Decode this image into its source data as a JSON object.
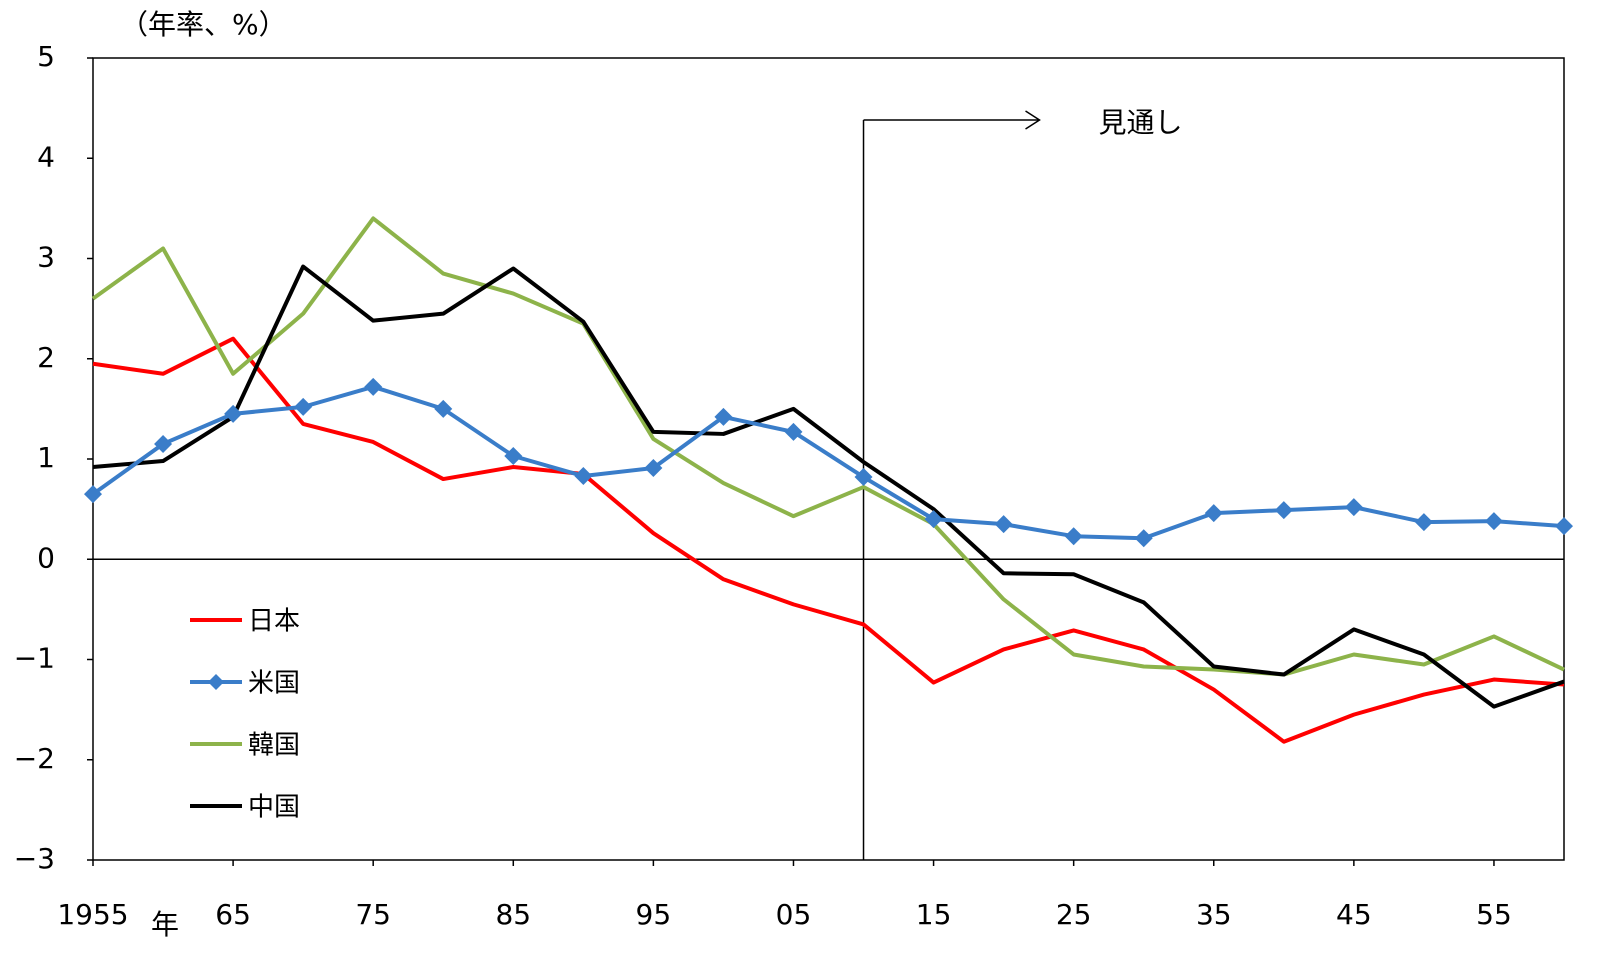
{
  "chart_data": {
    "type": "line",
    "y_label": "（年率、%）",
    "x_label": "年",
    "x": [
      1955,
      1960,
      1965,
      1970,
      1975,
      1980,
      1985,
      1990,
      1995,
      2000,
      2005,
      2010,
      2015,
      2020,
      2025,
      2030,
      2035,
      2040,
      2045,
      2050,
      2055,
      2060
    ],
    "xlim": [
      1955,
      2060
    ],
    "xticks": [
      {
        "value": 1955,
        "label": "1955"
      },
      {
        "value": 1965,
        "label": "65"
      },
      {
        "value": 1975,
        "label": "75"
      },
      {
        "value": 1985,
        "label": "85"
      },
      {
        "value": 1995,
        "label": "95"
      },
      {
        "value": 2005,
        "label": "05"
      },
      {
        "value": 2015,
        "label": "15"
      },
      {
        "value": 2025,
        "label": "25"
      },
      {
        "value": 2035,
        "label": "35"
      },
      {
        "value": 2045,
        "label": "45"
      },
      {
        "value": 2055,
        "label": "55"
      }
    ],
    "ylim": [
      -3,
      5
    ],
    "yticks": [
      {
        "value": -3,
        "label": "−3"
      },
      {
        "value": -2,
        "label": "−2"
      },
      {
        "value": -1,
        "label": "−1"
      },
      0,
      1,
      2,
      3,
      4,
      5
    ],
    "legend": "lower left",
    "annotation": {
      "text": "見通し",
      "x": 2010
    },
    "series": [
      {
        "name": "日本",
        "color": "#ff0000",
        "values": [
          1.95,
          1.85,
          2.2,
          1.35,
          1.17,
          0.8,
          0.92,
          0.85,
          0.26,
          -0.2,
          -0.45,
          -0.65,
          -1.23,
          -0.9,
          -0.71,
          -0.9,
          -1.3,
          -1.82,
          -1.55,
          -1.35,
          -1.2,
          -1.25
        ]
      },
      {
        "name": "米国",
        "color": "#3a7dc9",
        "marker": "diamond",
        "values": [
          0.65,
          1.15,
          1.45,
          1.52,
          1.72,
          1.5,
          1.03,
          0.83,
          0.91,
          1.42,
          1.27,
          0.82,
          0.4,
          0.35,
          0.23,
          0.21,
          0.46,
          0.49,
          0.52,
          0.37,
          0.38,
          0.33
        ]
      },
      {
        "name": "韓国",
        "color": "#8db34a",
        "values": [
          2.6,
          3.1,
          1.85,
          2.45,
          3.4,
          2.85,
          2.65,
          2.35,
          1.2,
          0.76,
          0.43,
          0.72,
          0.35,
          -0.4,
          -0.95,
          -1.07,
          -1.1,
          -1.15,
          -0.95,
          -1.05,
          -0.77,
          -1.1
        ]
      },
      {
        "name": "中国",
        "color": "#000000",
        "values": [
          0.92,
          0.98,
          1.42,
          2.92,
          2.38,
          2.45,
          2.9,
          2.37,
          1.27,
          1.25,
          1.5,
          0.97,
          0.5,
          -0.14,
          -0.15,
          -0.43,
          -1.07,
          -1.15,
          -0.7,
          -0.95,
          -1.47,
          -1.22
        ]
      }
    ]
  }
}
